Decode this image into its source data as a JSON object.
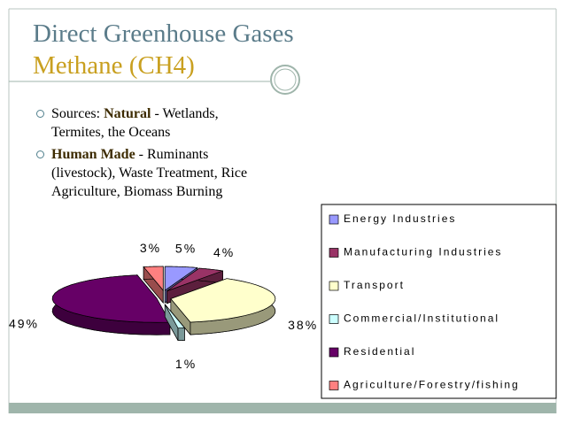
{
  "header": {
    "title": "Direct Greenhouse Gases",
    "subtitle": "Methane (CH4)"
  },
  "bullets": [
    [
      "Sources:  ",
      "Natural",
      " - Wetlands, Termites, the Oceans"
    ],
    [
      "Human Made",
      " - Ruminants (livestock), Waste Treatment, Rice Agriculture, Biomass Burning"
    ]
  ],
  "chart_data": {
    "type": "pie",
    "categories": [
      "Energy Industries",
      "Manufacturing Industries",
      "Transport",
      "Commercial/Institutional",
      "Residential",
      "Agriculture/Forestry/fishing"
    ],
    "values": [
      5,
      4,
      38,
      1,
      49,
      3
    ],
    "value_labels": [
      "5%",
      "4%",
      "38%",
      "1%",
      "49%",
      "3%"
    ],
    "colors": [
      "#9999ff",
      "#993366",
      "#ffffcc",
      "#ccffff",
      "#660066",
      "#ff8080"
    ],
    "legend": "right"
  }
}
